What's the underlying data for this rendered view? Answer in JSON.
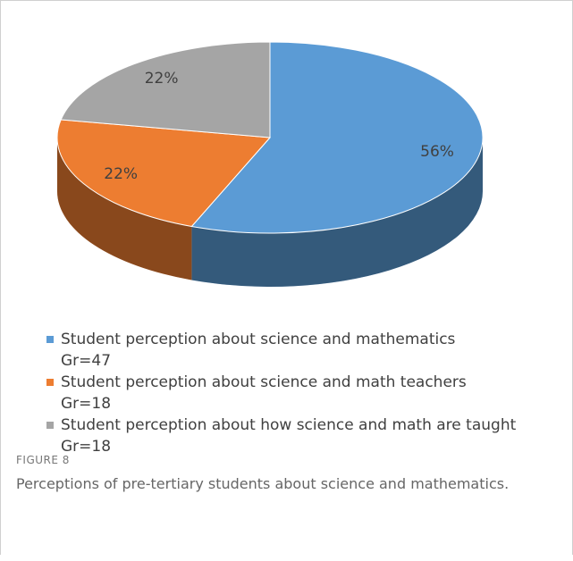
{
  "chart_data": {
    "type": "pie",
    "series": [
      {
        "name": "Student perception about science and mathematics\nGr=47",
        "color": "#5b9bd5"
      },
      {
        "name": "Student perception about science and math teachers\nGr=18",
        "color": "#ed7d31"
      },
      {
        "name": "Student perception about how science and math are taught\nGr=18",
        "color": "#a5a5a5"
      }
    ],
    "values": [
      56,
      22,
      22
    ],
    "value_labels": [
      "56%",
      "22%",
      "22%"
    ],
    "caption_label": "FIGURE 8",
    "caption": "Perceptions of pre-tertiary students about science and mathematics."
  }
}
